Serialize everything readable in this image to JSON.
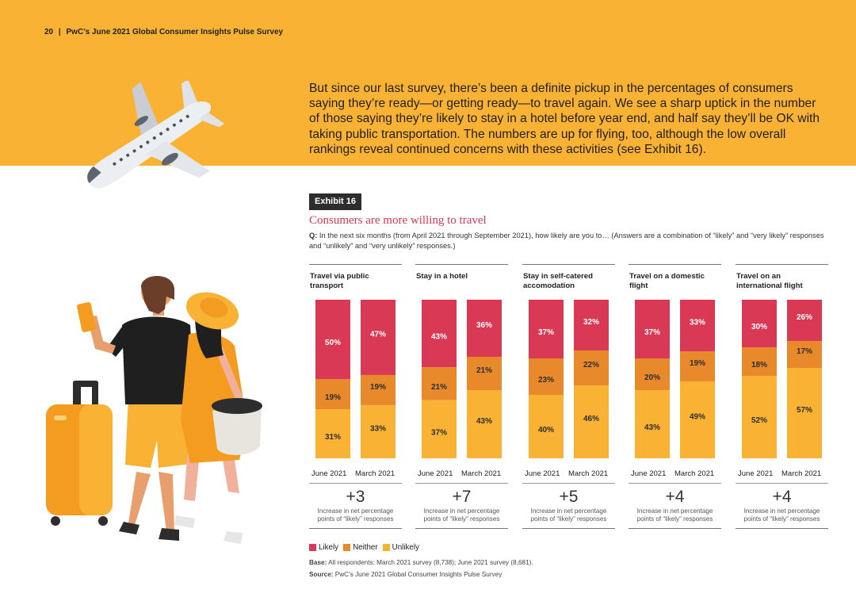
{
  "header": {
    "page_number": "20",
    "separator": "|",
    "publication": "PwC’s June 2021 Global Consumer Insights Pulse Survey"
  },
  "intro_paragraph": "But since our last survey, there’s been a definite pickup in the percentages of consumers saying they’re ready—or getting ready—to travel again. We see a sharp uptick in the number of those saying they’re likely to stay in a hotel before year end, and half say they’ll be OK with taking public transportation. The numbers are up for flying, too, although the low overall rankings reveal continued concerns with these activities (see Exhibit 16).",
  "exhibit": {
    "tag": "Exhibit 16",
    "title": "Consumers are more willing to travel",
    "question_label": "Q:",
    "question_text": " In the next six months (from April 2021 through September 2021), how likely are you to… (Answers are a combination of “likely” and “very likely” responses and “unlikely” and “very unlikely” responses.)"
  },
  "colors": {
    "likely": "#d93954",
    "neither": "#e8892b",
    "unlikely": "#f9b233",
    "band": "#f9b233"
  },
  "chart_data": {
    "type": "bar",
    "stacked": true,
    "normalized": "percent",
    "categories": [
      "June 2021",
      "March 2021"
    ],
    "series_names": [
      "Likely",
      "Neither",
      "Unlikely"
    ],
    "panels": [
      {
        "title": "Travel via public transport",
        "likely": [
          50,
          47
        ],
        "neither": [
          19,
          19
        ],
        "unlikely": [
          31,
          33
        ],
        "delta": "+3"
      },
      {
        "title": "Stay in a hotel",
        "likely": [
          43,
          36
        ],
        "neither": [
          21,
          21
        ],
        "unlikely": [
          37,
          43
        ],
        "delta": "+7"
      },
      {
        "title": "Stay in self-catered accomodation",
        "likely": [
          37,
          32
        ],
        "neither": [
          23,
          22
        ],
        "unlikely": [
          40,
          46
        ],
        "delta": "+5"
      },
      {
        "title": "Travel on a domestic flight",
        "likely": [
          37,
          33
        ],
        "neither": [
          20,
          19
        ],
        "unlikely": [
          43,
          49
        ],
        "delta": "+4"
      },
      {
        "title": "Travel on an international flight",
        "likely": [
          30,
          26
        ],
        "neither": [
          18,
          17
        ],
        "unlikely": [
          52,
          57
        ],
        "delta": "+4"
      }
    ],
    "delta_description": "Increase in net percentage points  of “likely” responses"
  },
  "legend": {
    "likely": "Likely",
    "neither": "Neither",
    "unlikely": "Unlikely"
  },
  "notes": {
    "base_label": "Base:",
    "base_text": " All respondents: March 2021 survey (8,738); June 2021 survey (8,681).",
    "source_label": "Source:",
    "source_text": " PwC’s June 2021 Global Consumer Insights Pulse Survey"
  }
}
